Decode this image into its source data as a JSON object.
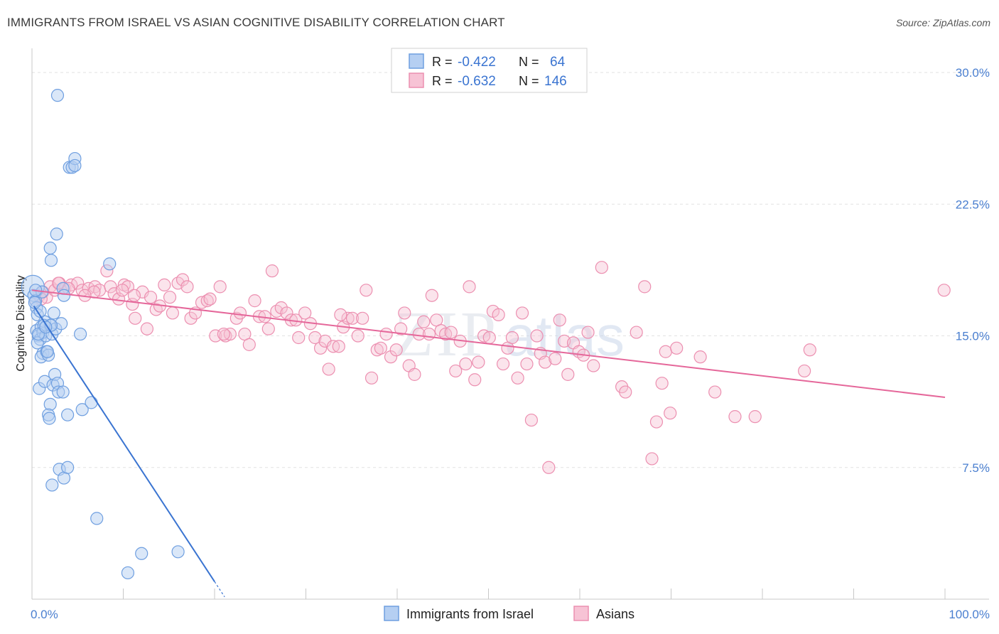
{
  "header": {
    "title": "IMMIGRANTS FROM ISRAEL VS ASIAN COGNITIVE DISABILITY CORRELATION CHART",
    "source": "Source: ZipAtlas.com"
  },
  "legend": {
    "rows": [
      {
        "r_label": "R =",
        "r_value": "-0.422",
        "n_label": "N =",
        "n_value": "64"
      },
      {
        "r_label": "R =",
        "r_value": "-0.632",
        "n_label": "N =",
        "n_value": "146"
      }
    ]
  },
  "bottom_legend": {
    "series1": "Immigrants from Israel",
    "series2": "Asians"
  },
  "watermark": {
    "zip": "ZIP",
    "atlas": "atlas"
  },
  "colors": {
    "israel": "#6f9fe0",
    "israel_fill": "#b5cff2",
    "israel_line": "#3a74d1",
    "asian": "#ec8fb0",
    "asian_fill": "#f7c3d5",
    "asian_line": "#e5679a",
    "tick_label": "#4a7fd0"
  },
  "chart_data": {
    "type": "scatter",
    "title": "IMMIGRANTS FROM ISRAEL VS ASIAN COGNITIVE DISABILITY CORRELATION CHART",
    "xlabel": "",
    "ylabel": "Cognitive Disability",
    "xlim": [
      0,
      100
    ],
    "ylim": [
      0,
      31.5
    ],
    "x_tick_labels": [
      "0.0%",
      "100.0%"
    ],
    "y_ticks": [
      7.5,
      15.0,
      22.5,
      30.0
    ],
    "y_tick_labels": [
      "7.5%",
      "15.0%",
      "22.5%",
      "30.0%"
    ],
    "series": [
      {
        "name": "Immigrants from Israel",
        "r": -0.422,
        "n": 64,
        "trend": {
          "x": [
            0.2,
            20.0
          ],
          "y": [
            16.7,
            1.0
          ]
        },
        "points": [
          {
            "x": 0.1,
            "y": 17.8
          },
          {
            "x": 0.2,
            "y": 17.3
          },
          {
            "x": 0.4,
            "y": 17.0
          },
          {
            "x": 0.5,
            "y": 16.6
          },
          {
            "x": 0.6,
            "y": 16.2
          },
          {
            "x": 0.5,
            "y": 15.3
          },
          {
            "x": 0.7,
            "y": 15.0
          },
          {
            "x": 0.9,
            "y": 14.8
          },
          {
            "x": 0.6,
            "y": 14.6
          },
          {
            "x": 1.0,
            "y": 15.5
          },
          {
            "x": 1.2,
            "y": 15.2
          },
          {
            "x": 1.4,
            "y": 15.8
          },
          {
            "x": 1.5,
            "y": 15.0
          },
          {
            "x": 1.2,
            "y": 14.0
          },
          {
            "x": 1.0,
            "y": 13.8
          },
          {
            "x": 1.6,
            "y": 14.1
          },
          {
            "x": 1.8,
            "y": 13.9
          },
          {
            "x": 2.0,
            "y": 15.6
          },
          {
            "x": 2.2,
            "y": 15.1
          },
          {
            "x": 2.6,
            "y": 15.4
          },
          {
            "x": 2.4,
            "y": 16.3
          },
          {
            "x": 3.2,
            "y": 15.7
          },
          {
            "x": 3.4,
            "y": 17.7
          },
          {
            "x": 3.5,
            "y": 17.3
          },
          {
            "x": 0.8,
            "y": 12.0
          },
          {
            "x": 1.4,
            "y": 12.4
          },
          {
            "x": 2.3,
            "y": 12.2
          },
          {
            "x": 2.5,
            "y": 12.8
          },
          {
            "x": 2.8,
            "y": 12.3
          },
          {
            "x": 2.9,
            "y": 11.8
          },
          {
            "x": 3.4,
            "y": 11.8
          },
          {
            "x": 2.0,
            "y": 11.1
          },
          {
            "x": 1.8,
            "y": 10.5
          },
          {
            "x": 1.9,
            "y": 10.3
          },
          {
            "x": 3.9,
            "y": 10.5
          },
          {
            "x": 5.5,
            "y": 10.8
          },
          {
            "x": 6.5,
            "y": 11.2
          },
          {
            "x": 2.0,
            "y": 20.0
          },
          {
            "x": 2.1,
            "y": 19.3
          },
          {
            "x": 2.7,
            "y": 20.8
          },
          {
            "x": 8.5,
            "y": 19.1
          },
          {
            "x": 4.1,
            "y": 24.6
          },
          {
            "x": 4.4,
            "y": 24.6
          },
          {
            "x": 4.7,
            "y": 25.1
          },
          {
            "x": 4.7,
            "y": 24.7
          },
          {
            "x": 2.8,
            "y": 28.7
          },
          {
            "x": 5.3,
            "y": 15.1
          },
          {
            "x": 3.0,
            "y": 7.4
          },
          {
            "x": 3.5,
            "y": 6.9
          },
          {
            "x": 3.9,
            "y": 7.5
          },
          {
            "x": 2.2,
            "y": 6.5
          },
          {
            "x": 7.1,
            "y": 4.6
          },
          {
            "x": 12.0,
            "y": 2.6
          },
          {
            "x": 16.0,
            "y": 2.7
          },
          {
            "x": 10.5,
            "y": 1.5
          },
          {
            "x": 1.1,
            "y": 17.5
          },
          {
            "x": 0.9,
            "y": 16.4
          },
          {
            "x": 1.3,
            "y": 15.6
          },
          {
            "x": 0.3,
            "y": 16.9
          },
          {
            "x": 0.7,
            "y": 15.1
          },
          {
            "x": 1.7,
            "y": 14.1
          },
          {
            "x": 2.1,
            "y": 15.6
          },
          {
            "x": 1.5,
            "y": 15.5
          },
          {
            "x": 0.4,
            "y": 17.6
          }
        ]
      },
      {
        "name": "Asians",
        "r": -0.632,
        "n": 146,
        "trend": {
          "x": [
            0.0,
            100.0
          ],
          "y": [
            17.6,
            11.5
          ]
        },
        "points": [
          {
            "x": 0.4,
            "y": 17.0
          },
          {
            "x": 0.8,
            "y": 17.3
          },
          {
            "x": 1.2,
            "y": 17.5
          },
          {
            "x": 1.6,
            "y": 17.2
          },
          {
            "x": 2.0,
            "y": 17.8
          },
          {
            "x": 2.5,
            "y": 17.6
          },
          {
            "x": 3.0,
            "y": 18.0
          },
          {
            "x": 3.6,
            "y": 17.7
          },
          {
            "x": 4.3,
            "y": 17.9
          },
          {
            "x": 5.0,
            "y": 18.0
          },
          {
            "x": 5.5,
            "y": 17.6
          },
          {
            "x": 6.2,
            "y": 17.7
          },
          {
            "x": 6.9,
            "y": 17.8
          },
          {
            "x": 7.4,
            "y": 17.6
          },
          {
            "x": 8.2,
            "y": 18.7
          },
          {
            "x": 8.6,
            "y": 17.8
          },
          {
            "x": 9.0,
            "y": 17.4
          },
          {
            "x": 9.5,
            "y": 17.1
          },
          {
            "x": 10.1,
            "y": 17.9
          },
          {
            "x": 10.5,
            "y": 17.8
          },
          {
            "x": 11.0,
            "y": 16.8
          },
          {
            "x": 11.3,
            "y": 16.0
          },
          {
            "x": 12.1,
            "y": 17.5
          },
          {
            "x": 12.6,
            "y": 15.4
          },
          {
            "x": 13.0,
            "y": 17.2
          },
          {
            "x": 13.6,
            "y": 16.5
          },
          {
            "x": 14.0,
            "y": 16.7
          },
          {
            "x": 14.5,
            "y": 17.9
          },
          {
            "x": 15.1,
            "y": 17.2
          },
          {
            "x": 15.4,
            "y": 16.3
          },
          {
            "x": 16.0,
            "y": 18.0
          },
          {
            "x": 16.5,
            "y": 18.2
          },
          {
            "x": 17.0,
            "y": 17.8
          },
          {
            "x": 17.4,
            "y": 16.0
          },
          {
            "x": 17.9,
            "y": 16.3
          },
          {
            "x": 18.6,
            "y": 16.9
          },
          {
            "x": 19.2,
            "y": 17.0
          },
          {
            "x": 19.5,
            "y": 17.1
          },
          {
            "x": 20.1,
            "y": 15.0
          },
          {
            "x": 20.6,
            "y": 17.8
          },
          {
            "x": 21.2,
            "y": 15.0
          },
          {
            "x": 21.7,
            "y": 15.1
          },
          {
            "x": 22.4,
            "y": 16.0
          },
          {
            "x": 22.8,
            "y": 16.3
          },
          {
            "x": 23.3,
            "y": 15.1
          },
          {
            "x": 23.8,
            "y": 14.5
          },
          {
            "x": 24.4,
            "y": 17.0
          },
          {
            "x": 24.9,
            "y": 16.1
          },
          {
            "x": 25.5,
            "y": 16.1
          },
          {
            "x": 25.9,
            "y": 15.4
          },
          {
            "x": 26.3,
            "y": 18.7
          },
          {
            "x": 26.8,
            "y": 16.4
          },
          {
            "x": 27.3,
            "y": 16.6
          },
          {
            "x": 27.9,
            "y": 16.3
          },
          {
            "x": 28.4,
            "y": 15.9
          },
          {
            "x": 28.9,
            "y": 15.9
          },
          {
            "x": 29.2,
            "y": 14.9
          },
          {
            "x": 29.9,
            "y": 16.3
          },
          {
            "x": 30.5,
            "y": 15.7
          },
          {
            "x": 31.0,
            "y": 14.9
          },
          {
            "x": 31.6,
            "y": 14.3
          },
          {
            "x": 32.1,
            "y": 14.7
          },
          {
            "x": 32.5,
            "y": 13.1
          },
          {
            "x": 33.0,
            "y": 14.4
          },
          {
            "x": 33.6,
            "y": 14.4
          },
          {
            "x": 34.1,
            "y": 15.5
          },
          {
            "x": 34.6,
            "y": 16.0
          },
          {
            "x": 35.1,
            "y": 16.0
          },
          {
            "x": 35.7,
            "y": 15.0
          },
          {
            "x": 36.2,
            "y": 16.0
          },
          {
            "x": 36.6,
            "y": 17.6
          },
          {
            "x": 37.2,
            "y": 12.6
          },
          {
            "x": 37.8,
            "y": 14.2
          },
          {
            "x": 38.2,
            "y": 14.3
          },
          {
            "x": 38.8,
            "y": 15.1
          },
          {
            "x": 39.3,
            "y": 13.8
          },
          {
            "x": 39.9,
            "y": 14.2
          },
          {
            "x": 40.4,
            "y": 15.4
          },
          {
            "x": 40.8,
            "y": 16.3
          },
          {
            "x": 41.3,
            "y": 13.3
          },
          {
            "x": 41.9,
            "y": 12.8
          },
          {
            "x": 42.4,
            "y": 15.1
          },
          {
            "x": 42.9,
            "y": 15.8
          },
          {
            "x": 43.5,
            "y": 15.1
          },
          {
            "x": 43.8,
            "y": 17.3
          },
          {
            "x": 44.3,
            "y": 15.9
          },
          {
            "x": 44.8,
            "y": 15.3
          },
          {
            "x": 45.3,
            "y": 15.1
          },
          {
            "x": 45.9,
            "y": 15.2
          },
          {
            "x": 46.4,
            "y": 13.0
          },
          {
            "x": 46.9,
            "y": 14.7
          },
          {
            "x": 47.5,
            "y": 13.4
          },
          {
            "x": 47.9,
            "y": 17.8
          },
          {
            "x": 48.5,
            "y": 12.5
          },
          {
            "x": 48.9,
            "y": 13.5
          },
          {
            "x": 49.5,
            "y": 15.0
          },
          {
            "x": 50.1,
            "y": 14.9
          },
          {
            "x": 50.5,
            "y": 16.4
          },
          {
            "x": 51.1,
            "y": 16.2
          },
          {
            "x": 51.6,
            "y": 13.4
          },
          {
            "x": 52.1,
            "y": 14.3
          },
          {
            "x": 52.6,
            "y": 14.9
          },
          {
            "x": 53.2,
            "y": 12.6
          },
          {
            "x": 53.7,
            "y": 16.3
          },
          {
            "x": 54.2,
            "y": 13.4
          },
          {
            "x": 54.7,
            "y": 10.2
          },
          {
            "x": 55.3,
            "y": 15.0
          },
          {
            "x": 55.7,
            "y": 14.0
          },
          {
            "x": 56.2,
            "y": 13.5
          },
          {
            "x": 56.6,
            "y": 7.5
          },
          {
            "x": 57.3,
            "y": 13.7
          },
          {
            "x": 57.8,
            "y": 15.9
          },
          {
            "x": 58.3,
            "y": 14.7
          },
          {
            "x": 58.7,
            "y": 12.8
          },
          {
            "x": 59.3,
            "y": 14.6
          },
          {
            "x": 59.9,
            "y": 14.1
          },
          {
            "x": 60.4,
            "y": 13.9
          },
          {
            "x": 60.9,
            "y": 15.2
          },
          {
            "x": 61.5,
            "y": 13.3
          },
          {
            "x": 62.4,
            "y": 18.9
          },
          {
            "x": 64.6,
            "y": 12.1
          },
          {
            "x": 65.0,
            "y": 11.8
          },
          {
            "x": 66.2,
            "y": 15.2
          },
          {
            "x": 67.1,
            "y": 17.8
          },
          {
            "x": 67.9,
            "y": 8.0
          },
          {
            "x": 68.4,
            "y": 10.1
          },
          {
            "x": 69.0,
            "y": 12.3
          },
          {
            "x": 69.4,
            "y": 14.1
          },
          {
            "x": 69.9,
            "y": 10.6
          },
          {
            "x": 70.6,
            "y": 14.3
          },
          {
            "x": 73.2,
            "y": 13.8
          },
          {
            "x": 74.8,
            "y": 11.8
          },
          {
            "x": 77.0,
            "y": 10.4
          },
          {
            "x": 79.2,
            "y": 10.4
          },
          {
            "x": 84.6,
            "y": 13.0
          },
          {
            "x": 85.2,
            "y": 14.2
          },
          {
            "x": 99.9,
            "y": 17.6
          },
          {
            "x": 11.2,
            "y": 17.3
          },
          {
            "x": 4.0,
            "y": 17.7
          },
          {
            "x": 6.8,
            "y": 17.5
          },
          {
            "x": 2.9,
            "y": 18.0
          },
          {
            "x": 5.8,
            "y": 17.3
          },
          {
            "x": 1.0,
            "y": 17.1
          },
          {
            "x": 9.9,
            "y": 17.6
          },
          {
            "x": 21.0,
            "y": 15.1
          },
          {
            "x": 33.8,
            "y": 16.2
          }
        ]
      }
    ]
  }
}
